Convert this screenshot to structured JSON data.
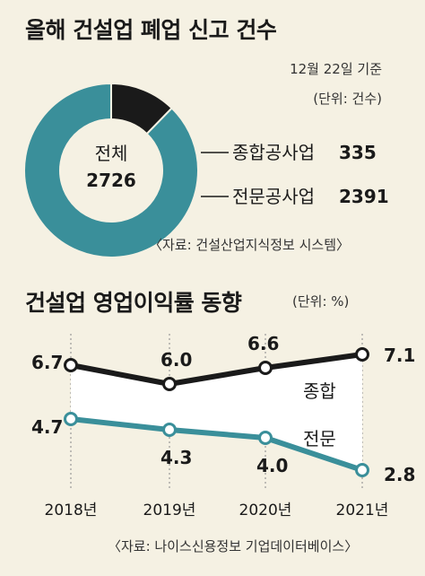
{
  "colors": {
    "background": "#f5f1e3",
    "general": "#1a1a1a",
    "specialty": "#3a8f9a",
    "grid": "#888888"
  },
  "donut": {
    "title": "올해 건설업 폐업 신고 건수",
    "date_note": "12월 22일 기준",
    "unit_note": "(단위: 건수)",
    "total_label": "전체",
    "total_value": "2726",
    "source": "〈자료: 건설산업지식정보 시스템〉"
  },
  "line": {
    "title": "건설업 영업이익률 동향",
    "unit_note": "(단위: %)",
    "source": "〈자료: 나이스신용정보 기업데이터베이스〉"
  },
  "chart_data": [
    {
      "type": "pie",
      "title": "올해 건설업 폐업 신고 건수",
      "total": 2726,
      "slices": [
        {
          "name": "종합공사업",
          "value": 335,
          "label": "335",
          "color": "#1a1a1a"
        },
        {
          "name": "전문공사업",
          "value": 2391,
          "label": "2391",
          "color": "#3a8f9a"
        }
      ]
    },
    {
      "type": "line",
      "title": "건설업 영업이익률 동향",
      "categories": [
        "2018년",
        "2019년",
        "2020년",
        "2021년"
      ],
      "series": [
        {
          "name": "종합",
          "values": [
            6.7,
            6.0,
            6.6,
            7.1
          ],
          "labels": [
            "6.7",
            "6.0",
            "6.6",
            "7.1"
          ],
          "color": "#1a1a1a"
        },
        {
          "name": "전문",
          "values": [
            4.7,
            4.3,
            4.0,
            2.8
          ],
          "labels": [
            "4.7",
            "4.3",
            "4.0",
            "2.8"
          ],
          "color": "#3a8f9a"
        }
      ],
      "ylim": [
        2.0,
        7.6
      ],
      "grid": "vertical dashed"
    }
  ]
}
